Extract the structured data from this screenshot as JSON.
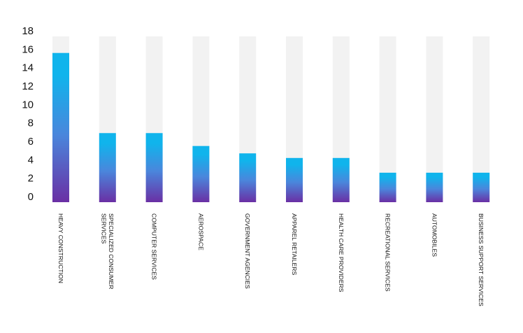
{
  "chart_data": {
    "type": "bar",
    "title": "",
    "xlabel": "",
    "ylabel": "",
    "ylim": [
      0,
      18
    ],
    "yticks": [
      0,
      2,
      4,
      6,
      8,
      10,
      12,
      14,
      16,
      18
    ],
    "grid": false,
    "legend": "none",
    "categories": [
      "HEAVY CONSTRUCTION",
      "SPECIALIZED CONSUMER SERVICES",
      "COMPUTER SERVICES",
      "AEROSPACE",
      "GOVERNMENT AGENCIES",
      "APPAREL RETAILERS",
      "HEALTH CARE PROVIDERS",
      "RECREATIONAL SERVICES",
      "AUTOMOBILES",
      "BUSINESS SUPPORT SERVICES"
    ],
    "category_lines": [
      [
        "HEAVY CONSTRUCTION"
      ],
      [
        "SPECIALIZED CONSUMER",
        "SERVICES"
      ],
      [
        "COMPUTER SERVICES"
      ],
      [
        "AEROSPACE"
      ],
      [
        "GOVERNMENT AGENCIES"
      ],
      [
        "APPAREL RETAILERS"
      ],
      [
        "HEALTH CARE PROVIDERS"
      ],
      [
        "RECREATIONAL SERVICES"
      ],
      [
        "AUTOMOBILES"
      ],
      [
        "BUSINESS SUPPORT SERVICES"
      ]
    ],
    "values": [
      16.2,
      7.5,
      7.5,
      6.1,
      5.3,
      4.8,
      4.8,
      3.2,
      3.2,
      3.2
    ],
    "colors": {
      "bar_top": "#10b4ec",
      "bar_mid": "#4a86dc",
      "bar_bottom": "#6a2fa4",
      "track": "#f2f2f2",
      "text": "#111111"
    }
  }
}
